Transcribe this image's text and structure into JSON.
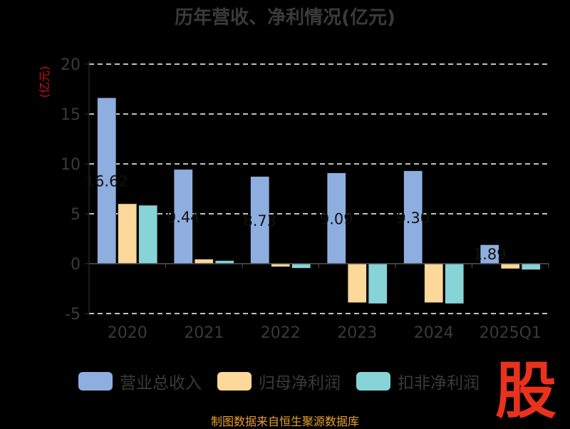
{
  "colors": {
    "revenue": "#8eaee0",
    "net_profit": "#fcd89a",
    "deducted_profit": "#86d4d8",
    "grid": "#ffffff",
    "axis_text": "#3a3a3a",
    "ylabel": "#d01010",
    "source": "#e8a02a",
    "logo": "#e8321e"
  },
  "chart_data": {
    "type": "bar",
    "title": "历年营收、净利情况(亿元)",
    "ylabel": "(亿元)",
    "xlabel": "",
    "ylim": [
      -5,
      20
    ],
    "yticks": [
      -5,
      0,
      5,
      10,
      15,
      20
    ],
    "grid": true,
    "legend_position": "bottom",
    "categories": [
      "2020",
      "2021",
      "2022",
      "2023",
      "2024",
      "2025Q1"
    ],
    "series": [
      {
        "name": "营业总收入",
        "values": [
          16.62,
          9.44,
          8.73,
          9.09,
          9.3,
          1.89
        ],
        "labels": [
          "16.62",
          "9.44",
          "8.73",
          "9.09",
          "9.30",
          "1.89"
        ]
      },
      {
        "name": "归母净利润",
        "values": [
          6.0,
          0.45,
          -0.3,
          -3.9,
          -3.9,
          -0.5
        ],
        "labels": []
      },
      {
        "name": "扣非净利润",
        "values": [
          5.85,
          0.3,
          -0.45,
          -4.0,
          -4.0,
          -0.6
        ],
        "labels": []
      }
    ]
  },
  "source_text": "制图数据来自恒生聚源数据库",
  "logo_text": "股"
}
